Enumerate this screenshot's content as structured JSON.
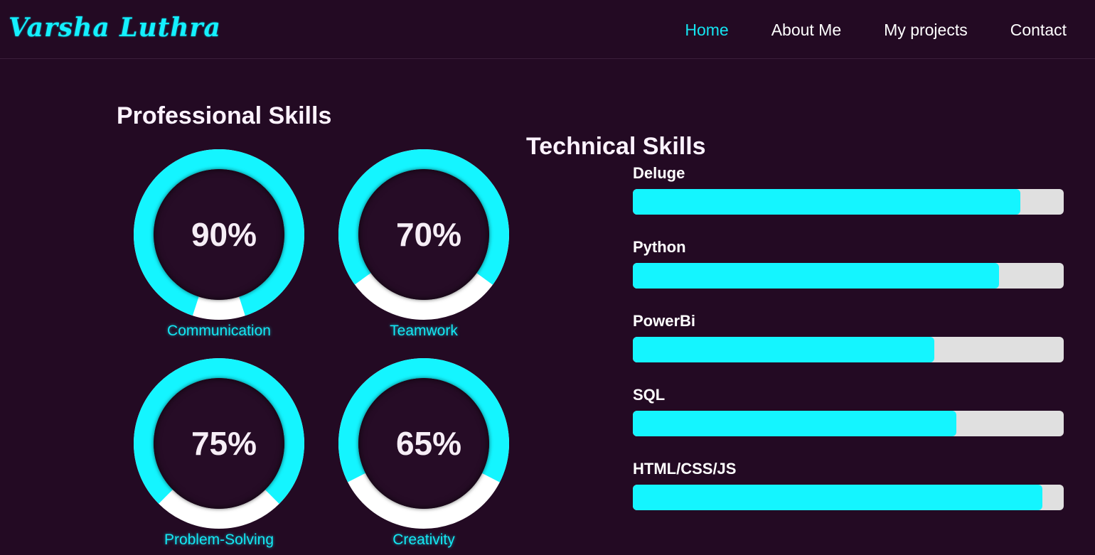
{
  "header": {
    "logo": "Varsha Luthra",
    "nav": [
      {
        "label": "Home",
        "active": true
      },
      {
        "label": "About Me",
        "active": false
      },
      {
        "label": "My projects",
        "active": false
      },
      {
        "label": "Contact",
        "active": false
      }
    ]
  },
  "professional": {
    "title": "Professional Skills",
    "skills": [
      {
        "label": "Communication",
        "percent_text": "90%",
        "percent": 90
      },
      {
        "label": "Teamwork",
        "percent_text": "70%",
        "percent": 70
      },
      {
        "label": "Problem-Solving",
        "percent_text": "75%",
        "percent": 75
      },
      {
        "label": "Creativity",
        "percent_text": "65%",
        "percent": 65
      }
    ]
  },
  "technical": {
    "title": "Technical Skills",
    "skills": [
      {
        "label": "Deluge",
        "percent": 90
      },
      {
        "label": "Python",
        "percent": 85
      },
      {
        "label": "PowerBi",
        "percent": 70
      },
      {
        "label": "SQL",
        "percent": 75
      },
      {
        "label": "HTML/CSS/JS",
        "percent": 95
      }
    ]
  },
  "colors": {
    "background": "#230a23",
    "accent": "#14f5ff",
    "ring_remainder": "#ffffff",
    "bar_track": "#e0e0e0"
  }
}
